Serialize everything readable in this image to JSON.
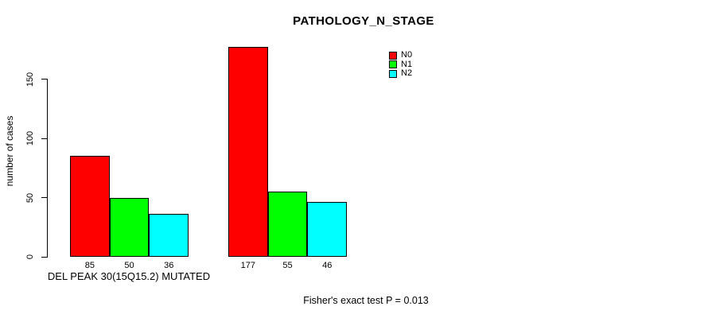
{
  "chart_data": {
    "type": "bar",
    "title": "PATHOLOGY_N_STAGE",
    "ylabel": "number of cases",
    "xlabel": "",
    "ylim": [
      0,
      177
    ],
    "yticks": [
      0,
      50,
      100,
      150
    ],
    "grid": false,
    "legend_position": "top-right",
    "categories": [
      "DEL PEAK 30(15Q15.2) MUTATED",
      ""
    ],
    "series": [
      {
        "name": "N0",
        "color": "#ff0000",
        "values": [
          85,
          177
        ]
      },
      {
        "name": "N1",
        "color": "#00ff00",
        "values": [
          50,
          55
        ]
      },
      {
        "name": "N2",
        "color": "#00ffff",
        "values": [
          36,
          46
        ]
      }
    ],
    "bar_value_labels": [
      [
        85,
        50,
        36
      ],
      [
        177,
        55,
        46
      ]
    ],
    "annotation": "Fisher's exact test P = 0.013"
  }
}
